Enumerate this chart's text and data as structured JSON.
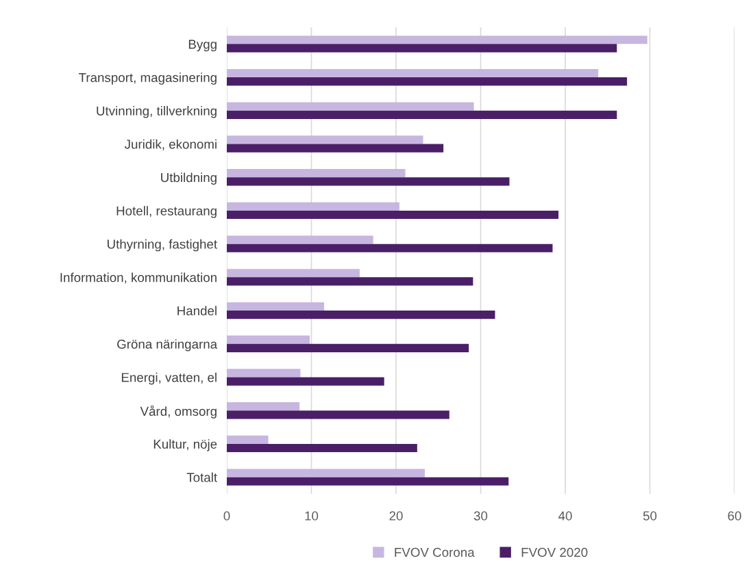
{
  "chart_data": {
    "type": "bar",
    "orientation": "horizontal",
    "categories": [
      "Bygg",
      "Transport, magasinering",
      "Utvinning, tillverkning",
      "Juridik, ekonomi",
      "Utbildning",
      "Hotell, restaurang",
      "Uthyrning, fastighet",
      "Information, kommunikation",
      "Handel",
      "Gröna näringarna",
      "Energi, vatten, el",
      "Vård, omsorg",
      "Kultur, nöje",
      "Totalt"
    ],
    "series": [
      {
        "name": "FVOV Corona",
        "color": "#c7b6e0",
        "values": [
          49.7,
          43.9,
          29.2,
          23.2,
          21.1,
          20.4,
          17.3,
          15.7,
          11.5,
          9.8,
          8.7,
          8.6,
          4.9,
          23.4
        ]
      },
      {
        "name": "FVOV 2020",
        "color": "#4a1f68",
        "values": [
          46.1,
          47.3,
          46.1,
          25.6,
          33.4,
          39.2,
          38.5,
          29.1,
          31.7,
          28.6,
          18.6,
          26.3,
          22.5,
          33.3
        ]
      }
    ],
    "xlim": [
      0,
      60
    ],
    "xticks": [
      0,
      10,
      20,
      30,
      40,
      50,
      60
    ],
    "grid": "x",
    "legend": "bottom"
  }
}
